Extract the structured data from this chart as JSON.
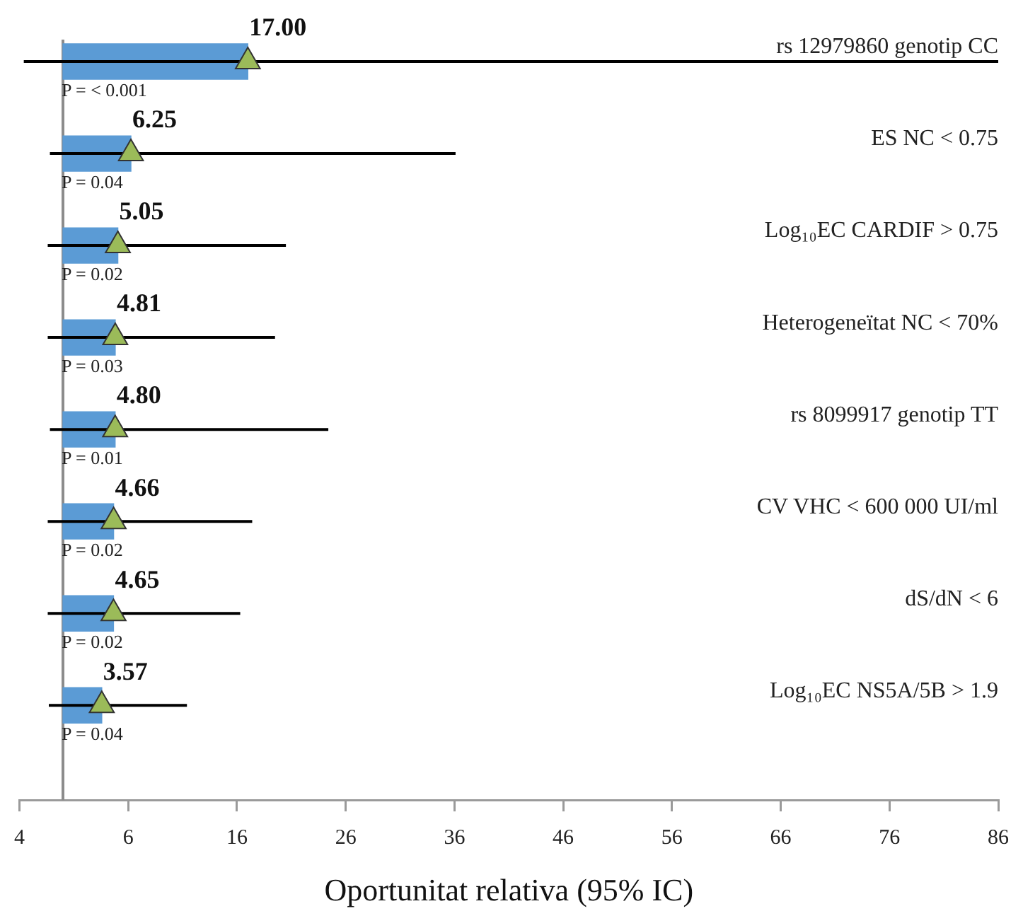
{
  "chart_data": {
    "type": "bar",
    "orientation": "horizontal",
    "xlabel": "Oportunitat relativa (95% IC)",
    "categories": [
      "rs 12979860 genotip CC",
      "ES NC < 0.75",
      "Log₁₀EC CARDIF > 0.75",
      "Heterogeneïtat NC < 70%",
      "rs 8099917 genotip TT",
      "CV VHC < 600 000 UI/ml",
      "dS/dN < 6",
      "Log₁₀EC NS5A/5B > 1.9"
    ],
    "xlim": [
      -4,
      86
    ],
    "xticks": [
      {
        "value": -4,
        "label": "4"
      },
      6,
      16,
      26,
      36,
      46,
      56,
      66,
      76,
      86
    ],
    "grid": false,
    "legend": false,
    "marker": "triangle",
    "series": [
      {
        "color": "#5b9bd5",
        "values": [
          17.0,
          6.25,
          5.05,
          4.81,
          4.8,
          4.66,
          4.65,
          3.57
        ],
        "errors": [
          [
            -3.6,
            86
          ],
          [
            -1.2,
            36.1
          ],
          [
            -1.4,
            20.5
          ],
          [
            -1.4,
            19.5
          ],
          [
            -1.2,
            24.4
          ],
          [
            -1.4,
            17.4
          ],
          [
            -1.4,
            16.3
          ],
          [
            -1.3,
            11.4
          ]
        ],
        "value_labels": [
          "17.00",
          "6.25",
          "5.05",
          "4.81",
          "4.80",
          "4.66",
          "4.65",
          "3.57"
        ]
      },
      {
        "type": "scatter",
        "color": "#9bbb59",
        "x": [
          "rs 12979860 genotip CC",
          "ES NC < 0.75",
          "Log₁₀EC CARDIF > 0.75",
          "Heterogeneïtat NC < 70%",
          "rs 8099917 genotip TT",
          "CV VHC < 600 000 UI/ml",
          "dS/dN < 6",
          "Log₁₀EC NS5A/5B > 1.9"
        ],
        "values": [
          17.0,
          6.25,
          5.05,
          4.81,
          4.8,
          4.66,
          4.65,
          3.57
        ]
      }
    ],
    "ref_lines": [
      {
        "axis": "x",
        "value": 0,
        "color": "#8c8c8c"
      }
    ],
    "annotations": [
      "P = < 0.001",
      "P = 0.04",
      "P = 0.02",
      "P = 0.03",
      "P = 0.01",
      "P = 0.02",
      "P = 0.02",
      "P = 0.04"
    ]
  }
}
